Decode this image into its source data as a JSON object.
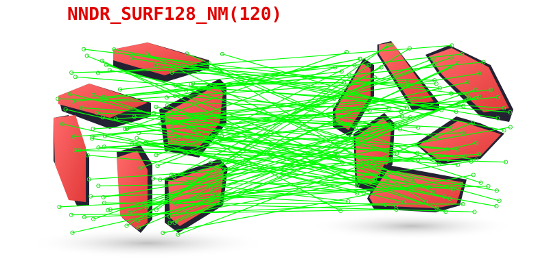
{
  "caption": {
    "text": "NNDR_SURF128_NM(120)",
    "color": "#e00000"
  },
  "scene": {
    "description_free": true,
    "colors": {
      "block_face": "#f24b4b",
      "block_dark": "#1f2030",
      "block_edge": "#2b2b3a",
      "shadow": "#c8c8c8",
      "match_line": "#00ff00",
      "keypoint": "#22dd22"
    },
    "match_count": 120,
    "left_view": "red-and-black angled block sculpture",
    "right_view": "same sculpture seen from a rotated viewpoint"
  }
}
